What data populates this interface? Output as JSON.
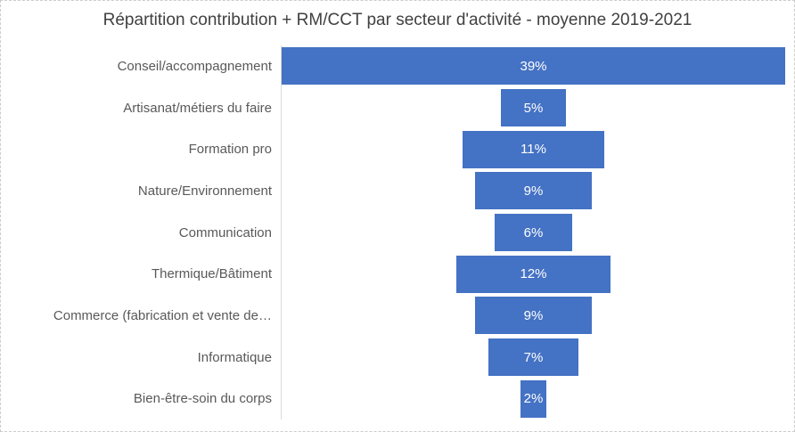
{
  "chart": {
    "colors": {
      "bar": "#4472C4",
      "data_label_text": "#FFFFFF",
      "category_label_text": "#595959",
      "title_text": "#404040",
      "axis_line": "#D9D9D9",
      "chart_border": "#CCCCCC",
      "background": "#FFFFFF"
    }
  },
  "chart_data": {
    "type": "bar",
    "subtype": "funnel-centered-horizontal",
    "title": "Répartition contribution + RM/CCT par secteur d'activité - moyenne 2019-2021",
    "xlabel": "",
    "ylabel": "",
    "categories": [
      "Conseil/accompagnement",
      "Artisanat/métiers du faire",
      "Formation pro",
      "Nature/Environnement",
      "Communication",
      "Thermique/Bâtiment",
      "Commerce (fabrication et vente de…",
      "Informatique",
      "Bien-être-soin du corps"
    ],
    "values": [
      39,
      5,
      11,
      9,
      6,
      12,
      9,
      7,
      2
    ],
    "labels": [
      "39%",
      "5%",
      "11%",
      "9%",
      "6%",
      "12%",
      "9%",
      "7%",
      "2%"
    ],
    "value_unit": "%",
    "max_value": 39,
    "grid": false,
    "legend": false,
    "axis_line": "vertical-left-of-bars"
  }
}
